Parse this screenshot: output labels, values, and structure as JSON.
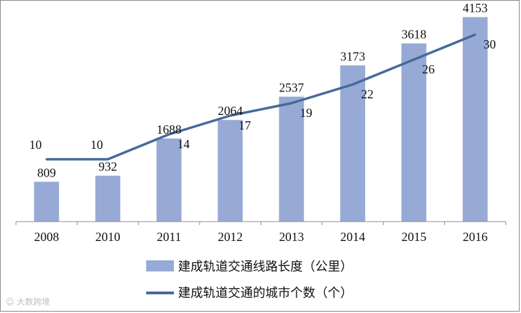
{
  "chart_data": {
    "type": "bar",
    "categories": [
      "2008",
      "2010",
      "2011",
      "2012",
      "2013",
      "2014",
      "2015",
      "2016"
    ],
    "series": [
      {
        "name": "建成轨道交通线路长度（公里）",
        "type": "bar",
        "axis": "left",
        "color": "#97aad5",
        "values": [
          809,
          932,
          1688,
          2064,
          2537,
          3173,
          3618,
          4153
        ]
      },
      {
        "name": "建成轨道交通的城市个数（个）",
        "type": "line",
        "axis": "right",
        "color": "#456a9a",
        "values": [
          10,
          10,
          14,
          17,
          19,
          22,
          26,
          30
        ]
      }
    ],
    "left_ylim": [
      0,
      4500
    ],
    "right_ylim": [
      0,
      36
    ],
    "grid": false,
    "legend_position": "bottom",
    "axis_labels_visible": false
  },
  "watermark": "大数跨境"
}
